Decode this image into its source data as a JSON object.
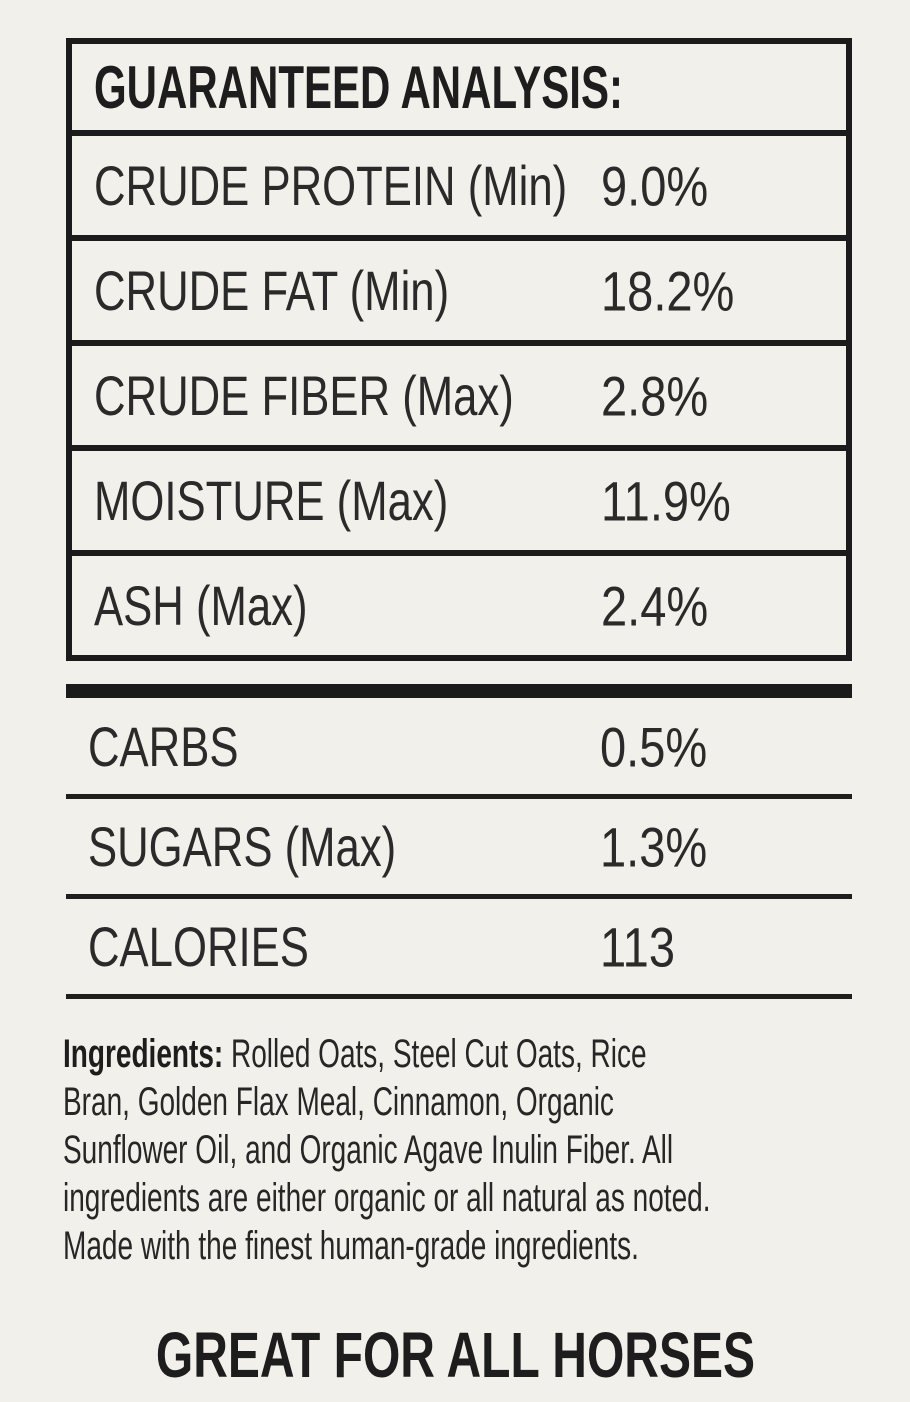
{
  "panel": {
    "background_color": "#f2f0ea",
    "ink_color": "#1b1b1b"
  },
  "guaranteed_analysis": {
    "title": "GUARANTEED ANALYSIS:",
    "rows": [
      {
        "label": "CRUDE PROTEIN (Min)",
        "value": "9.0%"
      },
      {
        "label": "CRUDE FAT (Min)",
        "value": "18.2%"
      },
      {
        "label": "CRUDE FIBER (Max)",
        "value": "2.8%"
      },
      {
        "label": "MOISTURE (Max)",
        "value": "11.9%"
      },
      {
        "label": "ASH (Max)",
        "value": "2.4%"
      }
    ]
  },
  "additional_facts": {
    "rows": [
      {
        "label": "CARBS",
        "value": "0.5%"
      },
      {
        "label": "SUGARS (Max)",
        "value": "1.3%"
      },
      {
        "label": "CALORIES",
        "value": "113"
      }
    ]
  },
  "ingredients": {
    "heading": "Ingredients:",
    "line1_rest": " Rolled Oats, Steel Cut Oats, Rice",
    "lines": [
      "Bran, Golden Flax Meal, Cinnamon, Organic",
      "Sunflower Oil, and Organic Agave Inulin Fiber. All",
      "ingredients are either organic or all natural as noted.",
      "Made with the finest human-grade ingredients."
    ]
  },
  "footer": {
    "claim": "GREAT FOR ALL HORSES"
  }
}
